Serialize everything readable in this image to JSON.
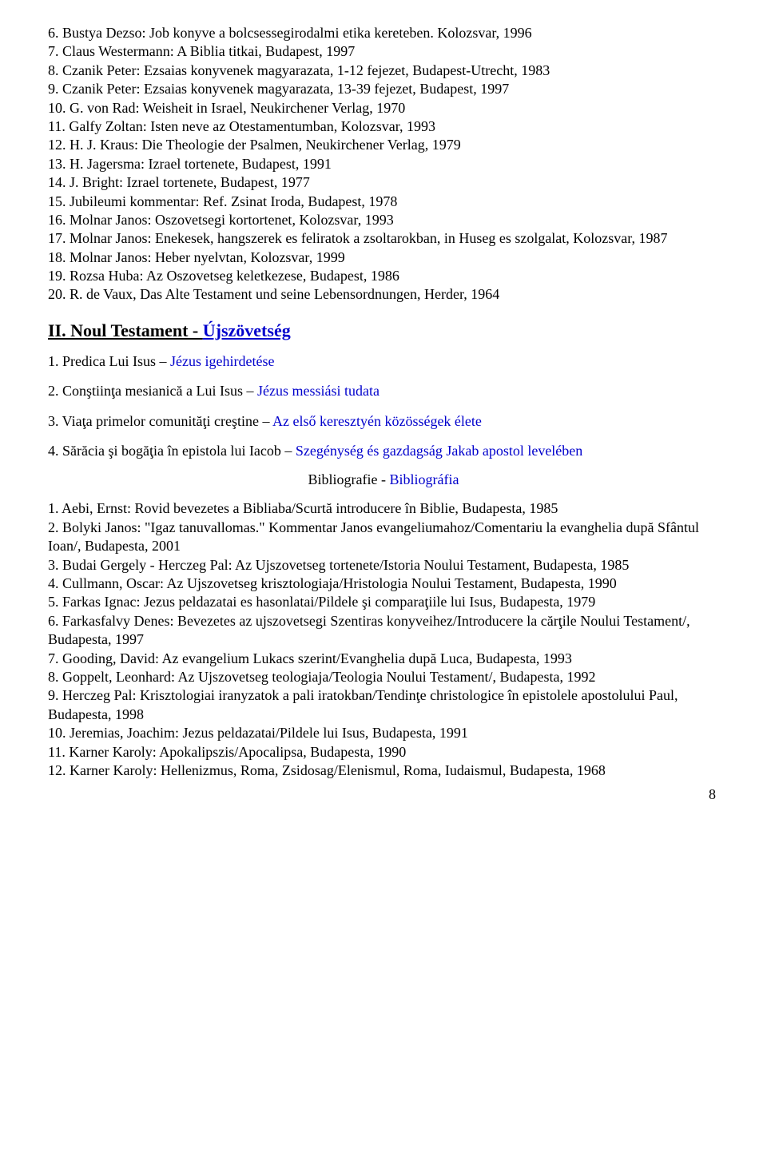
{
  "biblio_top": [
    "6. Bustya Dezso: Job konyve a bolcsessegirodalmi etika kereteben. Kolozsvar, 1996",
    "7. Claus Westermann: A Biblia titkai, Budapest, 1997",
    "8. Czanik Peter: Ezsaias konyvenek magyarazata, 1-12 fejezet, Budapest-Utrecht, 1983",
    "9. Czanik Peter: Ezsaias konyvenek magyarazata, 13-39 fejezet, Budapest, 1997",
    "10. G. von Rad: Weisheit in Israel, Neukirchener Verlag, 1970",
    "11. Galfy Zoltan: Isten neve az Otestamentumban, Kolozsvar, 1993",
    "12. H. J. Kraus: Die Theologie der Psalmen, Neukirchener Verlag, 1979",
    "13. H. Jagersma: Izrael tortenete, Budapest, 1991",
    "14. J. Bright: Izrael tortenete, Budapest, 1977",
    "15. Jubileumi kommentar: Ref. Zsinat Iroda, Budapest, 1978",
    "16. Molnar Janos: Oszovetsegi kortortenet, Kolozsvar, 1993",
    "17. Molnar Janos: Enekesek, hangszerek es feliratok a zsoltarokban, in Huseg es szolgalat, Kolozsvar, 1987",
    "18. Molnar Janos: Heber nyelvtan, Kolozsvar, 1999",
    "19. Rozsa Huba: Az Oszovetseg keletkezese, Budapest, 1986",
    "20. R. de Vaux, Das Alte Testament und seine Lebensordnungen, Herder, 1964"
  ],
  "section2": {
    "prefix": "II. Noul Testament - ",
    "hun": "Újszövetség"
  },
  "topics": [
    {
      "ro": "1. Predica Lui Isus – ",
      "hu": "Jézus igehirdetése"
    },
    {
      "ro": "2. Conştiinţa mesianică a Lui Isus – ",
      "hu": "Jézus messiási tudata"
    },
    {
      "ro": "3. Viaţa primelor comunităţi creştine – ",
      "hu": "Az első keresztyén közösségek élete"
    },
    {
      "ro": "4. Sărăcia şi bogăţia în epistola lui Iacob – ",
      "hu": "Szegénység és gazdagság Jakab apostol levelében"
    }
  ],
  "biblio_heading": {
    "ro": "Bibliografie - ",
    "hu": "Bibliográfia"
  },
  "biblio_bottom": [
    "1. Aebi, Ernst: Rovid bevezetes a Bibliaba/Scurtă introducere în Biblie, Budapesta, 1985",
    "2. Bolyki Janos: \"Igaz tanuvallomas.\" Kommentar Janos evangeliumahoz/Comentariu la evanghelia după Sfântul Ioan/, Budapesta, 2001",
    "3. Budai Gergely - Herczeg Pal: Az Ujszovetseg tortenete/Istoria Noului Testament, Budapesta, 1985",
    "4. Cullmann, Oscar: Az Ujszovetseg krisztologiaja/Hristologia Noului Testament, Budapesta, 1990",
    "5. Farkas Ignac: Jezus peldazatai es hasonlatai/Pildele şi comparaţiile lui Isus, Budapesta, 1979",
    "6. Farkasfalvy Denes: Bevezetes az ujszovetsegi Szentiras konyveihez/Introducere la cărţile Noului Testament/, Budapesta, 1997",
    "7. Gooding, David: Az evangelium Lukacs szerint/Evanghelia după Luca, Budapesta, 1993",
    "8. Goppelt, Leonhard: Az Ujszovetseg teologiaja/Teologia Noului Testament/, Budapesta, 1992",
    "9. Herczeg Pal: Krisztologiai iranyzatok a pali iratokban/Tendinţe christologice în epistolele apostolului Paul, Budapesta, 1998",
    "10. Jeremias, Joachim: Jezus peldazatai/Pildele lui Isus, Budapesta, 1991",
    "11. Karner Karoly: Apokalipszis/Apocalipsa, Budapesta, 1990",
    "12. Karner Karoly: Hellenizmus, Roma, Zsidosag/Elenismul, Roma, Iudaismul, Budapesta, 1968"
  ],
  "page_number": "8"
}
